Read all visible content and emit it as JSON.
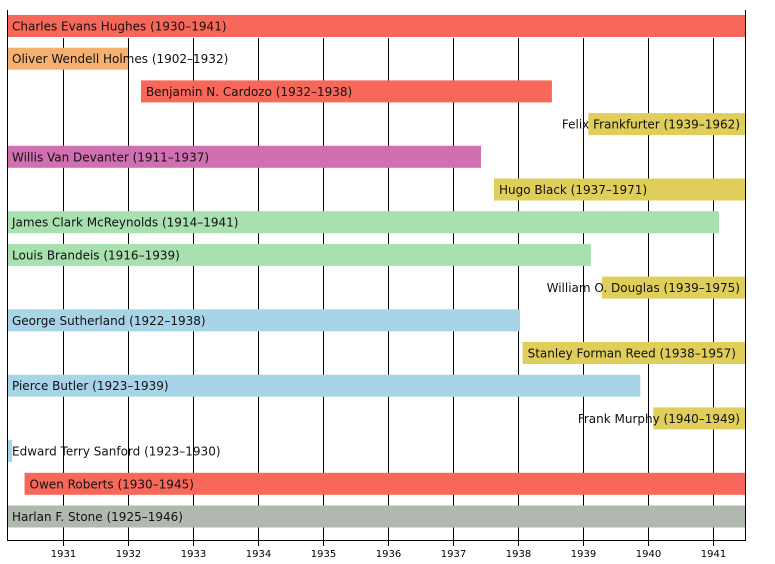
{
  "chart_data": {
    "type": "timeline",
    "title": "",
    "xlabel": "",
    "ylabel": "",
    "xlim": [
      1930.14,
      1941.49
    ],
    "x_ticks": [
      1931,
      1932,
      1933,
      1934,
      1935,
      1936,
      1937,
      1938,
      1939,
      1940,
      1941
    ],
    "grid": "vertical",
    "series": [
      {
        "label": "Charles Evans Hughes (1930–1941)",
        "start": 1930.14,
        "end": 1941.49,
        "color": "#f8685a"
      },
      {
        "label": "Oliver Wendell Holmes (1902–1932)",
        "start": 1930.14,
        "end": 1932.0,
        "color": "#f5b070"
      },
      {
        "label": "Benjamin N. Cardozo (1932–1938)",
        "start": 1932.2,
        "end": 1938.52,
        "color": "#f8685a"
      },
      {
        "label": "Felix Frankfurter (1939–1962)",
        "start": 1939.08,
        "end": 1941.49,
        "color": "#e0ce5a"
      },
      {
        "label": "Willis Van Devanter (1911–1937)",
        "start": 1930.14,
        "end": 1937.43,
        "color": "#d070b0"
      },
      {
        "label": "Hugo Black (1937–1971)",
        "start": 1937.63,
        "end": 1941.49,
        "color": "#e0ce5a"
      },
      {
        "label": "James Clark McReynolds (1914–1941)",
        "start": 1930.14,
        "end": 1941.09,
        "color": "#a8e0b0"
      },
      {
        "label": "Louis Brandeis (1916–1939)",
        "start": 1930.14,
        "end": 1939.12,
        "color": "#a8e0b0"
      },
      {
        "label": "William O. Douglas (1939–1975)",
        "start": 1939.29,
        "end": 1941.49,
        "color": "#e0ce5a"
      },
      {
        "label": "George Sutherland (1922–1938)",
        "start": 1930.14,
        "end": 1938.03,
        "color": "#a8d4e8"
      },
      {
        "label": "Stanley Forman Reed (1938–1957)",
        "start": 1938.07,
        "end": 1941.49,
        "color": "#e0ce5a"
      },
      {
        "label": "Pierce Butler (1923–1939)",
        "start": 1930.14,
        "end": 1939.88,
        "color": "#a8d4e8"
      },
      {
        "label": "Frank Murphy (1940–1949)",
        "start": 1940.08,
        "end": 1941.49,
        "color": "#e0ce5a"
      },
      {
        "label": "Edward Terry Sanford (1923–1930)",
        "start": 1930.14,
        "end": 1930.22,
        "color": "#a8d4e8"
      },
      {
        "label": "Owen Roberts (1930–1945)",
        "start": 1930.41,
        "end": 1941.49,
        "color": "#f8685a"
      },
      {
        "label": "Harlan F. Stone (1925–1946)",
        "start": 1930.14,
        "end": 1941.49,
        "color": "#b0b8b0"
      }
    ]
  }
}
